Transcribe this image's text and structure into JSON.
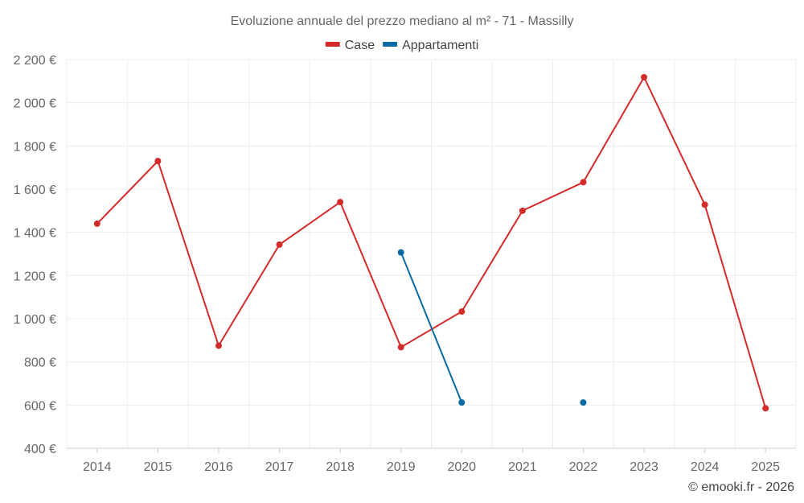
{
  "chart_data": {
    "type": "line",
    "title": "Evoluzione annuale del prezzo mediano al m² - 71 - Massilly",
    "categories": [
      "2014",
      "2015",
      "2016",
      "2017",
      "2018",
      "2019",
      "2020",
      "2021",
      "2022",
      "2023",
      "2024",
      "2025"
    ],
    "y_ticks": [
      400,
      600,
      800,
      1000,
      1200,
      1400,
      1600,
      1800,
      2000,
      2200
    ],
    "y_tick_labels": [
      "400 €",
      "600 €",
      "800 €",
      "1 000 €",
      "1 200 €",
      "1 400 €",
      "1 600 €",
      "1 800 €",
      "2 000 €",
      "2 200 €"
    ],
    "ylim": [
      400,
      2200
    ],
    "xlabel": "",
    "ylabel": "",
    "legend_position": "top-center",
    "grid": true,
    "series": [
      {
        "name": "Case",
        "color": "#d42a2a",
        "values": [
          1440,
          1730,
          875,
          1343,
          1540,
          868,
          1033,
          1500,
          1632,
          2118,
          1528,
          585
        ]
      },
      {
        "name": "Appartamenti",
        "color": "#0a6aa1",
        "values": [
          null,
          null,
          null,
          null,
          null,
          1307,
          612,
          null,
          612,
          null,
          null,
          null
        ]
      }
    ]
  },
  "credit": "© emooki.fr - 2026"
}
